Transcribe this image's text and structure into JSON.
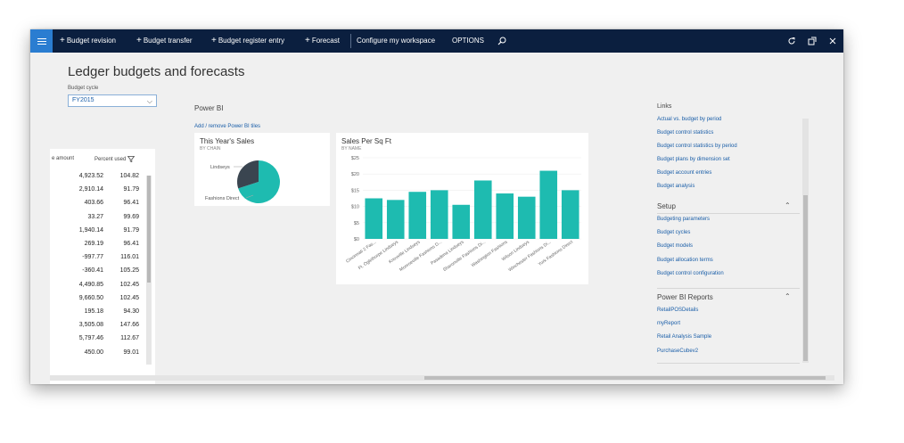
{
  "toolbar": {
    "items": [
      {
        "label": "Budget revision",
        "plus": true
      },
      {
        "label": "Budget transfer",
        "plus": true
      },
      {
        "label": "Budget register entry",
        "plus": true
      },
      {
        "label": "Forecast",
        "plus": true
      },
      {
        "label": "Configure my workspace",
        "plus": false
      },
      {
        "label": "OPTIONS",
        "plus": false
      }
    ],
    "icons": [
      "menu-icon",
      "search-icon",
      "refresh-icon",
      "popout-icon",
      "close-icon"
    ]
  },
  "page": {
    "title": "Ledger budgets and forecasts",
    "budget_cycle_label": "Budget cycle",
    "budget_cycle_value": "FY2015"
  },
  "grid": {
    "columns": [
      "e amount",
      "Percent used"
    ],
    "rows": [
      {
        "amount": "4,923.52",
        "percent": "104.82"
      },
      {
        "amount": "2,910.14",
        "percent": "91.79"
      },
      {
        "amount": "403.66",
        "percent": "96.41"
      },
      {
        "amount": "33.27",
        "percent": "99.69"
      },
      {
        "amount": "1,940.14",
        "percent": "91.79"
      },
      {
        "amount": "269.19",
        "percent": "96.41"
      },
      {
        "amount": "-997.77",
        "percent": "116.01"
      },
      {
        "amount": "-360.41",
        "percent": "105.25"
      },
      {
        "amount": "4,490.85",
        "percent": "102.45"
      },
      {
        "amount": "9,660.50",
        "percent": "102.45"
      },
      {
        "amount": "195.18",
        "percent": "94.30"
      },
      {
        "amount": "3,505.08",
        "percent": "147.66"
      },
      {
        "amount": "5,797.46",
        "percent": "112.67"
      },
      {
        "amount": "450.00",
        "percent": "99.01"
      }
    ]
  },
  "power_bi": {
    "section_title": "Power BI",
    "add_remove_link": "Add / remove Power BI tiles"
  },
  "tiles": {
    "sales": {
      "title": "This Year's Sales",
      "subtitle": "BY CHAIN",
      "label_a": "Lindseys",
      "label_b": "Fashions Direct"
    },
    "sqft": {
      "title": "Sales Per Sq Ft",
      "subtitle": "BY NAME"
    }
  },
  "chart_data": [
    {
      "type": "pie",
      "title": "This Year's Sales",
      "subtitle": "BY CHAIN",
      "categories": [
        "Lindseys",
        "Fashions Direct"
      ],
      "values": [
        30,
        70
      ],
      "colors": [
        "#3a4550",
        "#1ebbb0"
      ]
    },
    {
      "type": "bar",
      "title": "Sales Per Sq Ft",
      "subtitle": "BY NAME",
      "categories": [
        "Cincinnati 2 Fas...",
        "Ft. Oglethorpe Lindseys",
        "Knoxville Lindseys",
        "Monroeville Fashions D...",
        "Pasadena Lindseys",
        "Sharonville Fashions Di...",
        "Washington Fashions",
        "Wilson Lindseys",
        "Winchester Fashions Di...",
        "York Fashions Direct"
      ],
      "values": [
        12.5,
        12,
        14.5,
        15,
        10.5,
        18,
        14,
        13,
        21,
        15
      ],
      "y_ticks": [
        "$0",
        "$5",
        "$10",
        "$15",
        "$20",
        "$25"
      ],
      "ylim": [
        0,
        25
      ],
      "color": "#1ebbb0"
    }
  ],
  "links": {
    "title": "Links",
    "items": [
      "Actual vs. budget by period",
      "Budget control statistics",
      "Budget control statistics by period",
      "Budget plans by dimension set",
      "Budget account entries",
      "Budget analysis"
    ],
    "setup_title": "Setup",
    "setup_items": [
      "Budgeting parameters",
      "Budget cycles",
      "Budget models",
      "Budget allocation terms",
      "Budget control configuration"
    ],
    "reports_title": "Power BI Reports",
    "report_items": [
      "RetailPOSDetails",
      "myReport",
      "Retail Analysis Sample",
      "PurchaseCubev2"
    ]
  }
}
